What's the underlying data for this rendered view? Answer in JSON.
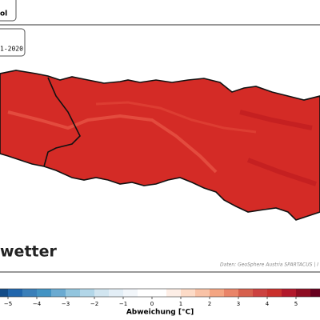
{
  "header": {
    "title_fragment": "ol",
    "period_fragment": "1-2020"
  },
  "brand": "wetter",
  "source": "Daten: GeoSphere Austria SPARTACUS | I",
  "colorbar": {
    "label": "Abweichung [°C]",
    "clim": [
      -6,
      6
    ],
    "ticks": [
      {
        "value": -5,
        "label": "−5"
      },
      {
        "value": -4,
        "label": "−4"
      },
      {
        "value": -3,
        "label": "−3"
      },
      {
        "value": -2,
        "label": "−2"
      },
      {
        "value": -1,
        "label": "−1"
      },
      0,
      1,
      2,
      3,
      4,
      5
    ],
    "colors": [
      "#053061",
      "#134c88",
      "#2166ac",
      "#3a7fb9",
      "#4393c3",
      "#6aaad1",
      "#92c5de",
      "#b2d6e8",
      "#d1e5f0",
      "#e3eef6",
      "#f2f6fa",
      "#ffffff",
      "#ffffff",
      "#fdeee6",
      "#fddbc7",
      "#f9c2a6",
      "#f4a582",
      "#e98468",
      "#d6604d",
      "#cc4240",
      "#c9302c",
      "#b2182b",
      "#8e0d22",
      "#67001f"
    ]
  }
}
